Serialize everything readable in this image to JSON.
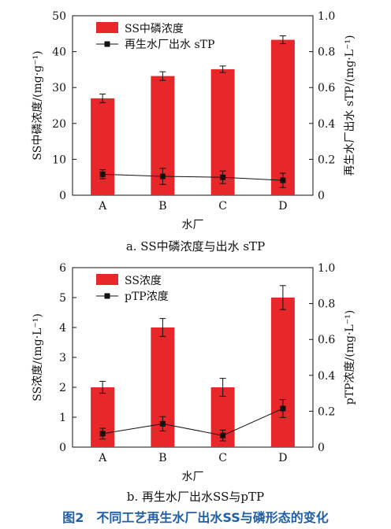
{
  "figure_caption": "图2　不同工艺再生水厂出水SS与磷形态的变化",
  "colors": {
    "bar": "#e8272a",
    "line": "#111111",
    "caption": "#1f5fa8"
  },
  "chart_data": [
    {
      "type": "bar",
      "caption": "a. SS中磷浓度与出水 sTP",
      "xlabel": "水厂",
      "ylabel": "SS中磷浓度/(mg·g⁻¹)",
      "y2label": "再生水厂出水 sTP/(mg·L⁻¹)",
      "categories": [
        "A",
        "B",
        "C",
        "D"
      ],
      "ylim": [
        0,
        50
      ],
      "yticks": [
        0,
        10,
        20,
        30,
        40,
        50
      ],
      "y2lim": [
        0,
        1.0
      ],
      "y2ticks": [
        "0",
        "0.2",
        "0.4",
        "0.6",
        "0.8",
        "1.0"
      ],
      "legend_position": "top-left",
      "series": [
        {
          "name": "SS中磷浓度",
          "kind": "bar",
          "axis": "left",
          "values": [
            27,
            33.2,
            35.1,
            43.3
          ],
          "errors": [
            1.2,
            1.2,
            0.9,
            1.1
          ]
        },
        {
          "name": "再生水厂出水 sTP",
          "kind": "line",
          "axis": "right",
          "values": [
            0.117,
            0.105,
            0.1,
            0.083
          ],
          "errors": [
            0.025,
            0.045,
            0.035,
            0.04
          ]
        }
      ]
    },
    {
      "type": "bar",
      "caption": "b. 再生水厂出水SS与pTP",
      "xlabel": "水厂",
      "ylabel": "SS浓度/(mg·L⁻¹)",
      "y2label": "pTP浓度/(mg·L⁻¹)",
      "categories": [
        "A",
        "B",
        "C",
        "D"
      ],
      "ylim": [
        0,
        6
      ],
      "yticks": [
        0,
        1,
        2,
        3,
        4,
        5,
        6
      ],
      "y2lim": [
        0,
        1.0
      ],
      "y2ticks": [
        "0",
        "0.2",
        "0.4",
        "0.6",
        "0.8",
        "1.0"
      ],
      "legend_position": "top-left",
      "series": [
        {
          "name": "SS浓度",
          "kind": "bar",
          "axis": "left",
          "values": [
            2,
            4,
            2,
            5
          ],
          "errors": [
            0.2,
            0.3,
            0.3,
            0.4
          ]
        },
        {
          "name": "pTP浓度",
          "kind": "line",
          "axis": "right",
          "values": [
            0.075,
            0.13,
            0.065,
            0.215
          ],
          "errors": [
            0.03,
            0.04,
            0.03,
            0.05
          ]
        }
      ]
    }
  ]
}
